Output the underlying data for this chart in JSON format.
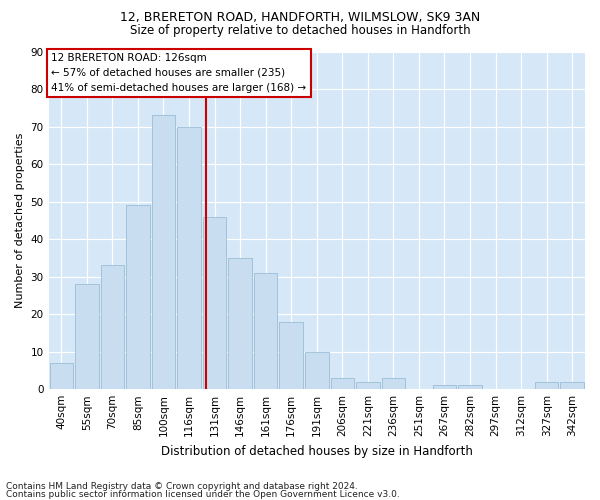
{
  "title": "12, BRERETON ROAD, HANDFORTH, WILMSLOW, SK9 3AN",
  "subtitle": "Size of property relative to detached houses in Handforth",
  "xlabel": "Distribution of detached houses by size in Handforth",
  "ylabel": "Number of detached properties",
  "categories": [
    "40sqm",
    "55sqm",
    "70sqm",
    "85sqm",
    "100sqm",
    "116sqm",
    "131sqm",
    "146sqm",
    "161sqm",
    "176sqm",
    "191sqm",
    "206sqm",
    "221sqm",
    "236sqm",
    "251sqm",
    "267sqm",
    "282sqm",
    "297sqm",
    "312sqm",
    "327sqm",
    "342sqm"
  ],
  "values": [
    7,
    28,
    33,
    49,
    73,
    70,
    46,
    35,
    31,
    18,
    10,
    3,
    2,
    3,
    0,
    1,
    1,
    0,
    0,
    2,
    2
  ],
  "bar_color": "#c8ddf0",
  "bar_edge_color": "#9bbdd6",
  "property_line_x": 5.67,
  "property_line_label": "12 BRERETON ROAD: 126sqm",
  "annotation_line1": "← 57% of detached houses are smaller (235)",
  "annotation_line2": "41% of semi-detached houses are larger (168) →",
  "annotation_box_color": "#ffffff",
  "annotation_box_edge_color": "#cc0000",
  "vline_color": "#cc0000",
  "ylim": [
    0,
    90
  ],
  "yticks": [
    0,
    10,
    20,
    30,
    40,
    50,
    60,
    70,
    80,
    90
  ],
  "background_color": "#d6e8f7",
  "plot_bg_color": "#d6e8f7",
  "fig_bg_color": "#ffffff",
  "grid_color": "#ffffff",
  "footer1": "Contains HM Land Registry data © Crown copyright and database right 2024.",
  "footer2": "Contains public sector information licensed under the Open Government Licence v3.0.",
  "title_fontsize": 9,
  "subtitle_fontsize": 8.5,
  "xlabel_fontsize": 8.5,
  "ylabel_fontsize": 8,
  "tick_fontsize": 7.5,
  "annotation_fontsize": 7.5,
  "footer_fontsize": 6.5
}
